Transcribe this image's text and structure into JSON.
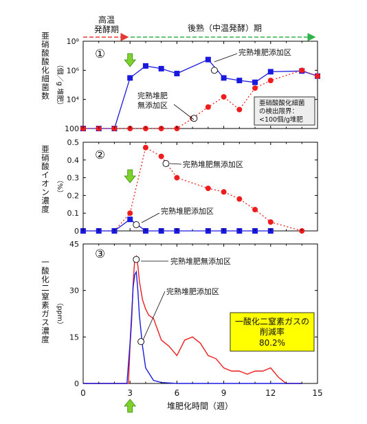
{
  "header": {
    "left_label_line1": "高温",
    "left_label_line2": "発酵期",
    "right_label": "後熟（中温発酵）期",
    "left_color": "#e53935",
    "right_color": "#2db34a"
  },
  "x_axis": {
    "label": "堆肥化時間（週）",
    "range": [
      0,
      15
    ],
    "ticks": [
      "0",
      "3",
      "6",
      "9",
      "12",
      "15"
    ],
    "tick_values": [
      0,
      3,
      6,
      9,
      12,
      15
    ]
  },
  "arrows": {
    "color": "#7fd12b",
    "week": 3
  },
  "colors": {
    "with_compost": "#1a1adf",
    "without_compost": "#ee1c1c",
    "note_box_fill": "#eeeeee",
    "yellow_box_fill": "#ffff00"
  },
  "chart_data": [
    {
      "type": "line",
      "panel_number": "①",
      "ylabel": "亜硝酸酸化細菌数（個／g 堆肥）",
      "ylabel_main": "亜硝酸酸化細菌数",
      "ylabel_unit": "（個／g 堆肥）",
      "yscale": "log",
      "ylim": [
        100,
        100000000
      ],
      "ytick_labels": [
        "100",
        "10⁴",
        "10⁶",
        "10⁸"
      ],
      "ytick_values": [
        100,
        10000,
        1000000,
        100000000
      ],
      "xlim": [
        0,
        15
      ],
      "series": [
        {
          "name": "完熟堆肥添加区",
          "marker": "square",
          "line": "solid",
          "x": [
            0,
            1,
            2,
            3,
            4,
            5,
            6,
            8,
            9,
            10,
            11,
            12,
            14,
            15
          ],
          "y": [
            100,
            100,
            100,
            300000,
            2000000,
            1300000,
            600000,
            5500000,
            300000,
            200000,
            150000,
            800000,
            900000,
            400000
          ]
        },
        {
          "name": "完熟堆肥無添加区",
          "marker": "circle",
          "line": "dotted",
          "x": [
            0,
            1,
            2,
            3,
            4,
            5,
            6,
            7,
            8,
            9,
            10,
            11,
            12,
            14,
            15
          ],
          "y": [
            100,
            100,
            100,
            100,
            100,
            100,
            100,
            500,
            3000,
            15000,
            2000,
            60000,
            200000,
            1000000,
            400000
          ]
        }
      ],
      "annotations": {
        "with_label": "完熟堆肥添加区",
        "without_label_line1": "完熟堆肥",
        "without_label_line2": "無添加区",
        "note_line1": "亜硝酸酸化細菌",
        "note_line2": "の検出限界：",
        "note_line3": "<100個/g堆肥"
      }
    },
    {
      "type": "line",
      "panel_number": "②",
      "ylabel": "亜硝酸イオン濃度（%）",
      "ylabel_main": "亜硝酸イオン濃度",
      "ylabel_unit": "（%）",
      "ylim": [
        0,
        0.5
      ],
      "ytick_labels": [
        "0",
        "0.1",
        "0.2",
        "0.3",
        "0.4",
        "0.5"
      ],
      "ytick_values": [
        0,
        0.1,
        0.2,
        0.3,
        0.4,
        0.5
      ],
      "xlim": [
        0,
        15
      ],
      "series": [
        {
          "name": "完熟堆肥無添加区",
          "marker": "circle",
          "line": "dotted",
          "x": [
            0,
            1,
            2,
            3,
            4,
            5,
            6,
            8,
            9,
            10,
            11,
            12,
            14
          ],
          "y": [
            0,
            0,
            0,
            0.1,
            0.47,
            0.42,
            0.3,
            0.24,
            0.22,
            0.18,
            0.12,
            0.05,
            0
          ]
        },
        {
          "name": "完熟堆肥添加区",
          "marker": "square",
          "line": "solid",
          "x": [
            0,
            1,
            2,
            3,
            4,
            5,
            6,
            8,
            9,
            10,
            11,
            12
          ],
          "y": [
            0,
            0,
            0,
            0.065,
            0,
            0,
            0,
            0,
            0,
            0,
            0,
            0
          ]
        }
      ],
      "annotations": {
        "without_label": "完熟堆肥無添加区",
        "with_label": "完熟堆肥添加区"
      }
    },
    {
      "type": "line",
      "panel_number": "③",
      "ylabel": "一酸化二窒素ガス濃度（ppm）",
      "ylabel_main": "一酸化二窒素ガス濃度",
      "ylabel_unit": "（ppm）",
      "ylim": [
        0,
        45
      ],
      "ytick_labels": [
        "0",
        "15",
        "30",
        "45"
      ],
      "ytick_values": [
        0,
        15,
        30,
        45
      ],
      "xlim": [
        0,
        15
      ],
      "series": [
        {
          "name": "完熟堆肥無添加区",
          "line": "solid",
          "x": [
            0,
            2.9,
            3.0,
            3.1,
            3.2,
            3.3,
            3.4,
            3.5,
            3.6,
            3.8,
            4.0,
            4.2,
            4.5,
            5.0,
            5.5,
            6.0,
            6.5,
            7.0,
            7.5,
            8.0,
            8.5,
            9.0,
            9.5,
            10.0,
            10.5,
            11.0,
            11.5,
            12.0,
            12.5,
            13.0,
            14.0
          ],
          "y": [
            0,
            0,
            12,
            20,
            32,
            40,
            41,
            38,
            33,
            27,
            24,
            22,
            21,
            14,
            12,
            9,
            14,
            15,
            13,
            9,
            8,
            5,
            4,
            4,
            3,
            4,
            4,
            5,
            2,
            0,
            0
          ]
        },
        {
          "name": "完熟堆肥添加区",
          "line": "solid",
          "x": [
            0,
            2.8,
            3.0,
            3.1,
            3.2,
            3.3,
            3.4,
            3.5,
            3.6,
            3.8,
            4.0,
            4.5,
            5.0,
            6.0,
            14.0
          ],
          "y": [
            0,
            0,
            13,
            22,
            31,
            35,
            36,
            30,
            22,
            12,
            5,
            1,
            0.3,
            0,
            0
          ]
        }
      ],
      "annotations": {
        "without_label": "完熟堆肥無添加区",
        "with_label": "完熟堆肥添加区",
        "reduction_line1": "一酸化二窒素ガスの",
        "reduction_line2": "削減率",
        "reduction_line3": "80.2%"
      }
    }
  ]
}
